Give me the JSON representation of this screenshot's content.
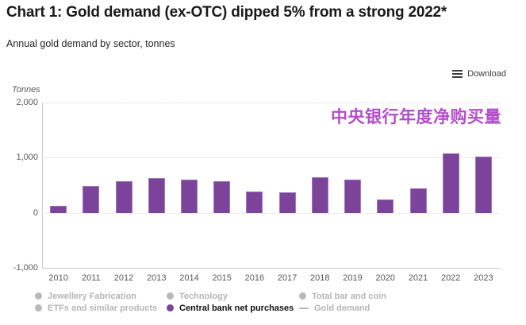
{
  "toolbar": {
    "download_label": "Download"
  },
  "chart_data": {
    "type": "bar",
    "title": "Chart 1: Gold demand (ex-OTC) dipped 5% from a strong 2022*",
    "subtitle": "Annual gold demand by sector, tonnes",
    "ylabel": "Tonnes",
    "categories": [
      "2010",
      "2011",
      "2012",
      "2013",
      "2014",
      "2015",
      "2016",
      "2017",
      "2018",
      "2019",
      "2020",
      "2021",
      "2022",
      "2023"
    ],
    "series": [
      {
        "name": "Central bank net purchases",
        "color": "#7b4399",
        "values": [
          130,
          490,
          570,
          640,
          605,
          580,
          395,
          375,
          650,
          600,
          250,
          445,
          1080,
          1030
        ]
      }
    ],
    "ylim": [
      -1000,
      2000
    ],
    "yticks": [
      {
        "value": 2000,
        "label": "2,000"
      },
      {
        "value": 1000,
        "label": "1,000"
      },
      {
        "value": 0,
        "label": "0"
      },
      {
        "value": -1000,
        "label": "-1,000"
      }
    ],
    "grid": "horizontal-dotted",
    "annotation": {
      "text": "中央银行年度净购买量",
      "color": "#b44dcb"
    },
    "legend": {
      "position": "bottom",
      "columns": [
        [
          {
            "label": "Jewellery Fabrication",
            "marker": "circle",
            "active": false
          },
          {
            "label": "ETFs and similar products",
            "marker": "circle",
            "active": false
          }
        ],
        [
          {
            "label": "Technology",
            "marker": "circle",
            "active": false
          },
          {
            "label": "Central bank net purchases",
            "marker": "circle",
            "active": true
          }
        ],
        [
          {
            "label": "Total bar and coin",
            "marker": "circle",
            "active": false
          },
          {
            "label": "Gold demand",
            "marker": "line",
            "active": false
          }
        ]
      ]
    },
    "colors": {
      "bar": "#7b4399",
      "annotation_text": "#b44dcb",
      "inactive_legend": "#b5b5b5",
      "axis_text": "#595959"
    }
  }
}
